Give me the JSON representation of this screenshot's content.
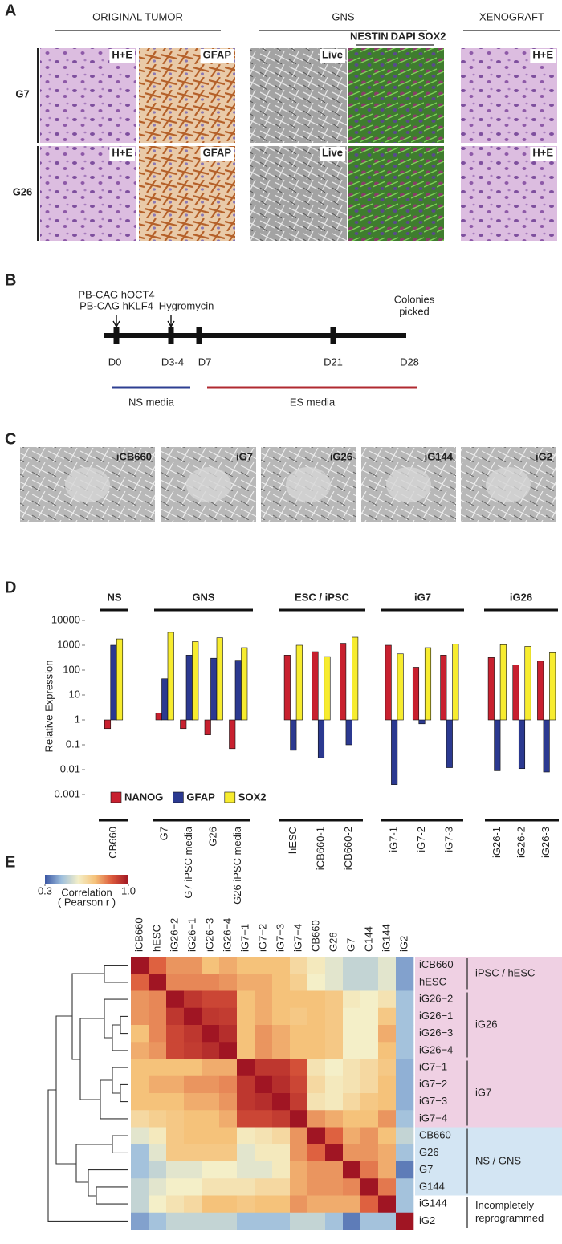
{
  "panel_a": {
    "label": "A",
    "headers": [
      "ORIGINAL TUMOR",
      "GNS",
      "XENOGRAFT"
    ],
    "stain_key": [
      "NESTIN",
      "DAPI",
      "SOX2"
    ],
    "stain_colors": [
      "#5cb848",
      "#3b9fd8",
      "#d2338e"
    ],
    "rows": [
      {
        "name": "G7",
        "tiles": [
          "H+E",
          "GFAP",
          "Live",
          "H+E"
        ]
      },
      {
        "name": "G26",
        "tiles": [
          "H+E",
          "GFAP",
          "Live",
          "H+E"
        ]
      }
    ]
  },
  "panel_b": {
    "label": "B",
    "treatments": [
      "PB-CAG hOCT4",
      "PB-CAG hKLF4"
    ],
    "selection": "Hygromycin",
    "end_note": [
      "Colonies",
      "picked"
    ],
    "days": [
      "D0",
      "D3-4",
      "D7",
      "D21",
      "D28"
    ],
    "media": [
      {
        "name": "NS media",
        "color": "#2e3f92"
      },
      {
        "name": "ES media",
        "color": "#b02a30"
      }
    ]
  },
  "panel_c": {
    "label": "C",
    "images": [
      "iCB660",
      "iG7",
      "iG26",
      "iG144",
      "iG2"
    ]
  },
  "panel_d": {
    "label": "D"
  },
  "panel_e": {
    "label": "E"
  },
  "chart_data": [
    {
      "type": "bar",
      "log_scale": true,
      "ylabel": "Relative Expression",
      "ylim": [
        0.001,
        10000
      ],
      "yticks": [
        0.001,
        0.01,
        0.1,
        1,
        10,
        100,
        1000,
        10000
      ],
      "legend": "lower left",
      "groups": [
        {
          "name": "NS",
          "categories": [
            "CB660"
          ]
        },
        {
          "name": "GNS",
          "categories": [
            "G7",
            "G7 iPSC media",
            "G26",
            "G26 iPSC media"
          ]
        },
        {
          "name": "ESC / iPSC",
          "categories": [
            "hESC",
            "iCB660-1",
            "iCB660-2"
          ]
        },
        {
          "name": "iG7",
          "categories": [
            "iG7-1",
            "iG7-2",
            "iG7-3"
          ]
        },
        {
          "name": "iG26",
          "categories": [
            "iG26-1",
            "iG26-2",
            "iG26-3"
          ]
        }
      ],
      "series": [
        {
          "name": "NANOG",
          "color": "#c8202f",
          "values": [
            0.45,
            1.9,
            0.45,
            0.25,
            0.07,
            400,
            550,
            1200,
            1000,
            130,
            400,
            320,
            160,
            230
          ]
        },
        {
          "name": "GFAP",
          "color": "#2b3990",
          "values": [
            1000,
            45,
            400,
            300,
            250,
            0.06,
            0.03,
            0.1,
            0.0025,
            0.7,
            0.012,
            0.009,
            0.011,
            0.008
          ]
        },
        {
          "name": "SOX2",
          "color": "#f7ec2f",
          "values": [
            1800,
            3300,
            1400,
            2000,
            800,
            1000,
            350,
            2100,
            450,
            800,
            1100,
            1050,
            900,
            500
          ]
        }
      ]
    },
    {
      "type": "heatmap",
      "columns": [
        "iCB660",
        "hESC",
        "iG26−2",
        "iG26−1",
        "iG26−3",
        "iG26−4",
        "iG7−1",
        "iG7−2",
        "iG7−3",
        "iG7−4",
        "CB660",
        "G26",
        "G7",
        "G144",
        "iG144",
        "iG2"
      ],
      "rows": [
        "iCB660",
        "hESC",
        "iG26−2",
        "iG26−1",
        "iG26−3",
        "iG26−4",
        "iG7−1",
        "iG7−2",
        "iG7−3",
        "iG7−4",
        "CB660",
        "G26",
        "G7",
        "G144",
        "iG144",
        "iG2"
      ],
      "values": [
        [
          1.0,
          0.85,
          0.78,
          0.78,
          0.72,
          0.75,
          0.72,
          0.72,
          0.72,
          0.65,
          0.6,
          0.55,
          0.5,
          0.5,
          0.55,
          0.4
        ],
        [
          0.85,
          1.0,
          0.8,
          0.8,
          0.8,
          0.78,
          0.75,
          0.75,
          0.72,
          0.68,
          0.58,
          0.55,
          0.5,
          0.5,
          0.55,
          0.4
        ],
        [
          0.78,
          0.8,
          1.0,
          0.93,
          0.9,
          0.9,
          0.72,
          0.75,
          0.72,
          0.72,
          0.72,
          0.7,
          0.6,
          0.58,
          0.62,
          0.45
        ],
        [
          0.78,
          0.8,
          0.93,
          1.0,
          0.93,
          0.92,
          0.72,
          0.75,
          0.72,
          0.7,
          0.72,
          0.7,
          0.58,
          0.58,
          0.7,
          0.45
        ],
        [
          0.72,
          0.8,
          0.9,
          0.93,
          1.0,
          0.95,
          0.72,
          0.78,
          0.75,
          0.72,
          0.72,
          0.7,
          0.58,
          0.58,
          0.75,
          0.45
        ],
        [
          0.75,
          0.78,
          0.9,
          0.92,
          0.95,
          1.0,
          0.72,
          0.78,
          0.75,
          0.72,
          0.72,
          0.7,
          0.58,
          0.58,
          0.72,
          0.45
        ],
        [
          0.72,
          0.72,
          0.72,
          0.72,
          0.75,
          0.75,
          1.0,
          0.93,
          0.93,
          0.88,
          0.62,
          0.58,
          0.62,
          0.65,
          0.7,
          0.42
        ],
        [
          0.72,
          0.75,
          0.75,
          0.78,
          0.78,
          0.8,
          0.93,
          1.0,
          0.95,
          0.9,
          0.65,
          0.6,
          0.62,
          0.65,
          0.72,
          0.42
        ],
        [
          0.72,
          0.72,
          0.72,
          0.75,
          0.75,
          0.78,
          0.93,
          0.95,
          1.0,
          0.92,
          0.62,
          0.6,
          0.65,
          0.7,
          0.72,
          0.42
        ],
        [
          0.65,
          0.68,
          0.7,
          0.72,
          0.72,
          0.75,
          0.9,
          0.9,
          0.92,
          1.0,
          0.78,
          0.75,
          0.72,
          0.72,
          0.78,
          0.45
        ],
        [
          0.55,
          0.6,
          0.7,
          0.72,
          0.72,
          0.72,
          0.6,
          0.62,
          0.65,
          0.78,
          1.0,
          0.85,
          0.75,
          0.78,
          0.72,
          0.5
        ],
        [
          0.45,
          0.55,
          0.7,
          0.7,
          0.7,
          0.7,
          0.55,
          0.6,
          0.6,
          0.78,
          0.85,
          1.0,
          0.78,
          0.78,
          0.75,
          0.45
        ],
        [
          0.45,
          0.5,
          0.55,
          0.55,
          0.58,
          0.58,
          0.55,
          0.55,
          0.6,
          0.75,
          0.78,
          0.78,
          1.0,
          0.82,
          0.75,
          0.35
        ],
        [
          0.5,
          0.55,
          0.58,
          0.58,
          0.62,
          0.62,
          0.62,
          0.65,
          0.65,
          0.75,
          0.78,
          0.78,
          0.8,
          1.0,
          0.82,
          0.45
        ],
        [
          0.5,
          0.58,
          0.62,
          0.65,
          0.72,
          0.72,
          0.7,
          0.72,
          0.72,
          0.78,
          0.75,
          0.75,
          0.75,
          0.85,
          1.0,
          0.45
        ],
        [
          0.4,
          0.45,
          0.5,
          0.5,
          0.5,
          0.5,
          0.45,
          0.45,
          0.45,
          0.5,
          0.5,
          0.45,
          0.35,
          0.45,
          0.45,
          1.0
        ]
      ],
      "zlim": [
        0.3,
        1
      ],
      "colorscale": [
        "#3b57a4",
        "#9ebfdd",
        "#f4efc8",
        "#f5c27a",
        "#dc5a3c",
        "#a01523"
      ],
      "colorbar_label": "Correlation",
      "colorbar_sublabel": "( Pearson r )",
      "colorbar_ticks": [
        0.3,
        {
          "value": 1,
          "label": "1.0"
        }
      ],
      "row_groups": [
        {
          "lines": [
            "iPSC / hESC"
          ],
          "color": "#efd0e3"
        },
        {
          "lines": [
            "iG26"
          ],
          "color": "#efd0e3"
        },
        {
          "lines": [
            "iG7"
          ],
          "color": "#efd0e3"
        },
        {
          "lines": [
            "NS / GNS"
          ],
          "color": "#d3e5f3"
        },
        {
          "lines": [
            "Incompletely",
            "reprogrammed"
          ],
          "color": "#ffffff"
        }
      ]
    }
  ]
}
